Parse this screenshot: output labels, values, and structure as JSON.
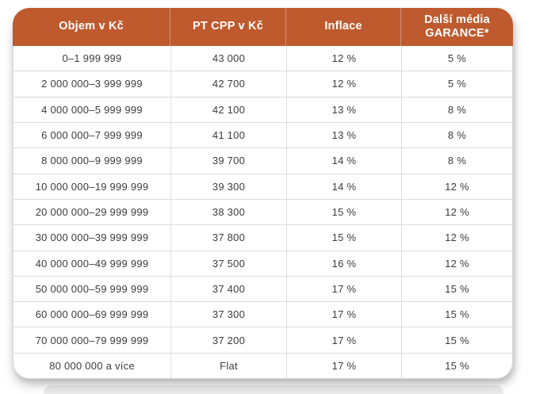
{
  "colors": {
    "header_bg": "#BE5A2E",
    "header_text": "#FFFFFF",
    "body_text": "#3C3C3B",
    "grid_line": "#DCDCDC"
  },
  "table": {
    "headers": [
      "Objem v Kč",
      "PT CPP v Kč",
      "Inflace",
      "Další média GARANCE*"
    ],
    "header4_lines": [
      "Další média",
      "GARANCE*"
    ],
    "rows": [
      [
        "0–1 999 999",
        "43 000",
        "12 %",
        "5 %"
      ],
      [
        "2 000 000–3 999 999",
        "42 700",
        "12 %",
        "5 %"
      ],
      [
        "4 000 000–5 999 999",
        "42 100",
        "13 %",
        "8 %"
      ],
      [
        "6 000 000–7 999 999",
        "41 100",
        "13 %",
        "8 %"
      ],
      [
        "8 000 000–9 999 999",
        "39 700",
        "14 %",
        "8 %"
      ],
      [
        "10 000 000–19 999 999",
        "39 300",
        "14 %",
        "12 %"
      ],
      [
        "20 000 000–29 999 999",
        "38 300",
        "15 %",
        "12 %"
      ],
      [
        "30 000 000–39 999 999",
        "37 800",
        "15 %",
        "12 %"
      ],
      [
        "40 000 000–49 999 999",
        "37 500",
        "16 %",
        "12 %"
      ],
      [
        "50 000 000–59 999 999",
        "37 400",
        "17 %",
        "15 %"
      ],
      [
        "60 000 000–69 999 999",
        "37 300",
        "17 %",
        "15 %"
      ],
      [
        "70 000 000–79 999 999",
        "37 200",
        "17 %",
        "15 %"
      ],
      [
        "80 000 000 a více",
        "Flat",
        "17 %",
        "15 %"
      ]
    ]
  },
  "chart_data": {
    "type": "table",
    "title": "",
    "columns": [
      "Objem v Kč",
      "PT CPP v Kč",
      "Inflace",
      "Další média GARANCE*"
    ],
    "rows": [
      [
        "0–1 999 999",
        "43 000",
        "12 %",
        "5 %"
      ],
      [
        "2 000 000–3 999 999",
        "42 700",
        "12 %",
        "5 %"
      ],
      [
        "4 000 000–5 999 999",
        "42 100",
        "13 %",
        "8 %"
      ],
      [
        "6 000 000–7 999 999",
        "41 100",
        "13 %",
        "8 %"
      ],
      [
        "8 000 000–9 999 999",
        "39 700",
        "14 %",
        "8 %"
      ],
      [
        "10 000 000–19 999 999",
        "39 300",
        "14 %",
        "12 %"
      ],
      [
        "20 000 000–29 999 999",
        "38 300",
        "15 %",
        "12 %"
      ],
      [
        "30 000 000–39 999 999",
        "37 800",
        "15 %",
        "12 %"
      ],
      [
        "40 000 000–49 999 999",
        "37 500",
        "16 %",
        "12 %"
      ],
      [
        "50 000 000–59 999 999",
        "37 400",
        "17 %",
        "15 %"
      ],
      [
        "60 000 000–69 999 999",
        "37 300",
        "17 %",
        "15 %"
      ],
      [
        "70 000 000–79 999 999",
        "37 200",
        "17 %",
        "15 %"
      ],
      [
        "80 000 000 a více",
        "Flat",
        "17 %",
        "15 %"
      ]
    ]
  }
}
